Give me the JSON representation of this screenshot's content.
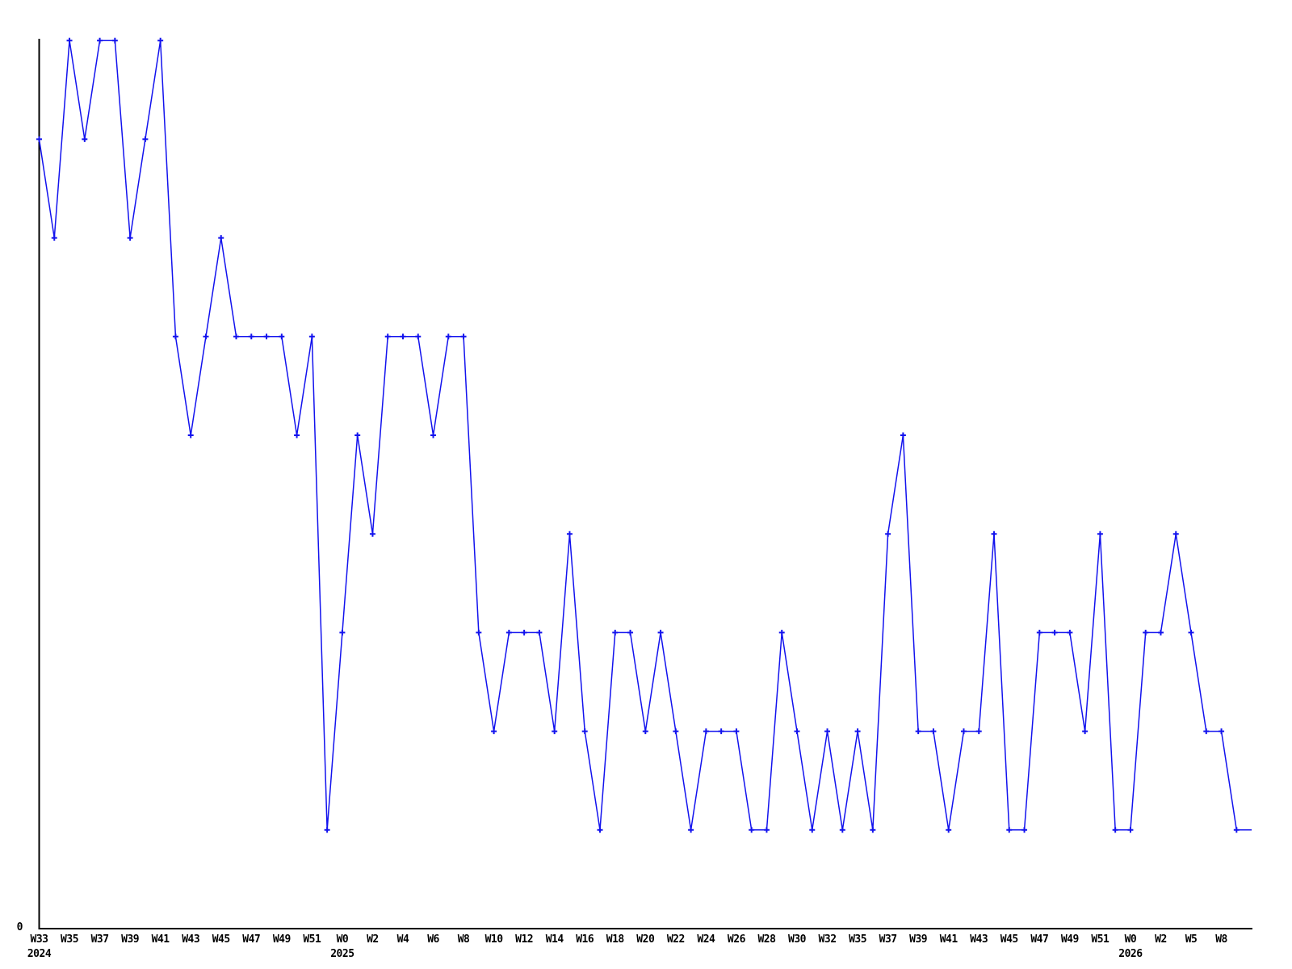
{
  "chart_data": {
    "type": "line",
    "title": "",
    "subtitle": "",
    "legend": null,
    "grid": false,
    "background_color": "#ffffff",
    "line_color": "#1212ee",
    "axis_color": "#000000",
    "text_color": "#000000",
    "marker_style": "plus",
    "last_point_has_marker": false,
    "y_axis": {
      "zero_label": "0",
      "min": 0,
      "max": 9,
      "ticks_shown": [
        "0"
      ]
    },
    "x_axis": {
      "tick_interval_points": 2,
      "years_shown": [
        "2024",
        "2025",
        "2026"
      ]
    },
    "points": [
      {
        "week": "W33",
        "value": 8
      },
      {
        "week": "W34",
        "value": 7
      },
      {
        "week": "W35",
        "value": 9
      },
      {
        "week": "W36",
        "value": 8
      },
      {
        "week": "W37",
        "value": 9
      },
      {
        "week": "W38",
        "value": 9
      },
      {
        "week": "W39",
        "value": 7
      },
      {
        "week": "W40",
        "value": 8
      },
      {
        "week": "W41",
        "value": 9
      },
      {
        "week": "W42",
        "value": 6
      },
      {
        "week": "W43",
        "value": 5
      },
      {
        "week": "W44",
        "value": 6
      },
      {
        "week": "W45",
        "value": 7
      },
      {
        "week": "W46",
        "value": 6
      },
      {
        "week": "W47",
        "value": 6
      },
      {
        "week": "W48",
        "value": 6
      },
      {
        "week": "W49",
        "value": 6
      },
      {
        "week": "W50",
        "value": 5
      },
      {
        "week": "W51",
        "value": 6
      },
      {
        "week": "W52",
        "value": 1
      },
      {
        "week": "W0",
        "value": 3
      },
      {
        "week": "W1",
        "value": 5
      },
      {
        "week": "W2",
        "value": 4
      },
      {
        "week": "W3",
        "value": 6
      },
      {
        "week": "W4",
        "value": 6
      },
      {
        "week": "W5",
        "value": 6
      },
      {
        "week": "W6",
        "value": 5
      },
      {
        "week": "W7",
        "value": 6
      },
      {
        "week": "W8",
        "value": 6
      },
      {
        "week": "W9",
        "value": 3
      },
      {
        "week": "W10",
        "value": 2
      },
      {
        "week": "W11",
        "value": 3
      },
      {
        "week": "W12",
        "value": 3
      },
      {
        "week": "W13",
        "value": 3
      },
      {
        "week": "W14",
        "value": 2
      },
      {
        "week": "W15",
        "value": 4
      },
      {
        "week": "W16",
        "value": 2
      },
      {
        "week": "W17",
        "value": 1
      },
      {
        "week": "W18",
        "value": 3
      },
      {
        "week": "W19",
        "value": 3
      },
      {
        "week": "W20",
        "value": 2
      },
      {
        "week": "W21",
        "value": 3
      },
      {
        "week": "W22",
        "value": 2
      },
      {
        "week": "W23",
        "value": 1
      },
      {
        "week": "W24",
        "value": 2
      },
      {
        "week": "W25",
        "value": 2
      },
      {
        "week": "W26",
        "value": 2
      },
      {
        "week": "W27",
        "value": 1
      },
      {
        "week": "W28",
        "value": 1
      },
      {
        "week": "W29",
        "value": 3
      },
      {
        "week": "W30",
        "value": 2
      },
      {
        "week": "W31",
        "value": 1
      },
      {
        "week": "W32",
        "value": 2
      },
      {
        "week": "W34",
        "value": 1
      },
      {
        "week": "W35",
        "value": 2
      },
      {
        "week": "W36",
        "value": 1
      },
      {
        "week": "W37",
        "value": 4
      },
      {
        "week": "W38",
        "value": 5
      },
      {
        "week": "W39",
        "value": 2
      },
      {
        "week": "W40",
        "value": 2
      },
      {
        "week": "W41",
        "value": 1
      },
      {
        "week": "W42",
        "value": 2
      },
      {
        "week": "W43",
        "value": 2
      },
      {
        "week": "W44",
        "value": 4
      },
      {
        "week": "W45",
        "value": 1
      },
      {
        "week": "W46",
        "value": 1
      },
      {
        "week": "W47",
        "value": 3
      },
      {
        "week": "W48",
        "value": 3
      },
      {
        "week": "W49",
        "value": 3
      },
      {
        "week": "W50",
        "value": 2
      },
      {
        "week": "W51",
        "value": 4
      },
      {
        "week": "W52",
        "value": 1
      },
      {
        "week": "W0",
        "value": 1
      },
      {
        "week": "W1",
        "value": 3
      },
      {
        "week": "W2",
        "value": 3
      },
      {
        "week": "W4",
        "value": 4
      },
      {
        "week": "W5",
        "value": 3
      },
      {
        "week": "W7",
        "value": 2
      },
      {
        "week": "W8",
        "value": 2
      },
      {
        "week": "W9",
        "value": 1
      },
      {
        "week": "W10",
        "value": 1
      }
    ],
    "x_ticks": [
      {
        "index": 0,
        "label": "W33",
        "year": "2024"
      },
      {
        "index": 2,
        "label": "W35"
      },
      {
        "index": 4,
        "label": "W37"
      },
      {
        "index": 6,
        "label": "W39"
      },
      {
        "index": 8,
        "label": "W41"
      },
      {
        "index": 10,
        "label": "W43"
      },
      {
        "index": 12,
        "label": "W45"
      },
      {
        "index": 14,
        "label": "W47"
      },
      {
        "index": 16,
        "label": "W49"
      },
      {
        "index": 18,
        "label": "W51"
      },
      {
        "index": 20,
        "label": "W0",
        "year": "2025"
      },
      {
        "index": 22,
        "label": "W2"
      },
      {
        "index": 24,
        "label": "W4"
      },
      {
        "index": 26,
        "label": "W6"
      },
      {
        "index": 28,
        "label": "W8"
      },
      {
        "index": 30,
        "label": "W10"
      },
      {
        "index": 32,
        "label": "W12"
      },
      {
        "index": 34,
        "label": "W14"
      },
      {
        "index": 36,
        "label": "W16"
      },
      {
        "index": 38,
        "label": "W18"
      },
      {
        "index": 40,
        "label": "W20"
      },
      {
        "index": 42,
        "label": "W22"
      },
      {
        "index": 44,
        "label": "W24"
      },
      {
        "index": 46,
        "label": "W26"
      },
      {
        "index": 48,
        "label": "W28"
      },
      {
        "index": 50,
        "label": "W30"
      },
      {
        "index": 52,
        "label": "W32"
      },
      {
        "index": 54,
        "label": "W35"
      },
      {
        "index": 56,
        "label": "W37"
      },
      {
        "index": 58,
        "label": "W39"
      },
      {
        "index": 60,
        "label": "W41"
      },
      {
        "index": 62,
        "label": "W43"
      },
      {
        "index": 64,
        "label": "W45"
      },
      {
        "index": 66,
        "label": "W47"
      },
      {
        "index": 68,
        "label": "W49"
      },
      {
        "index": 70,
        "label": "W51"
      },
      {
        "index": 72,
        "label": "W0",
        "year": "2026"
      },
      {
        "index": 74,
        "label": "W2"
      },
      {
        "index": 76,
        "label": "W5"
      },
      {
        "index": 78,
        "label": "W8"
      }
    ]
  }
}
